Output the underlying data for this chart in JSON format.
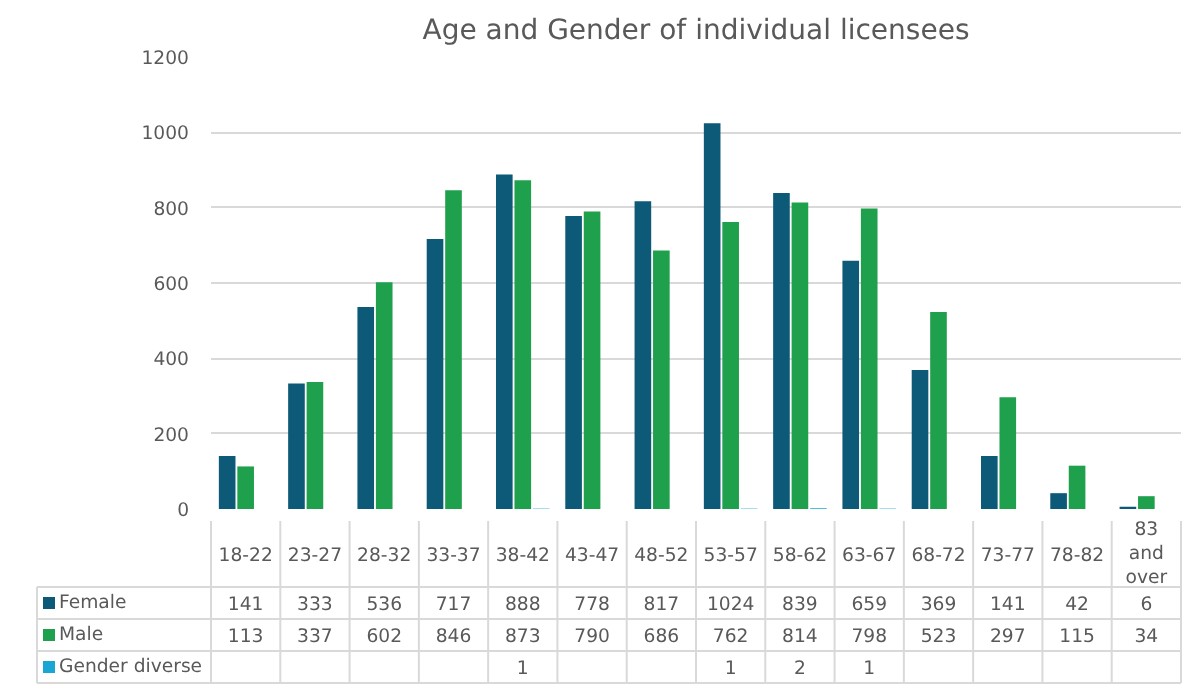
{
  "chart_data": {
    "type": "bar",
    "title": "Age and Gender of individual licensees",
    "categories": [
      "18-22",
      "23-27",
      "28-32",
      "33-37",
      "38-42",
      "43-47",
      "48-52",
      "53-57",
      "58-62",
      "63-67",
      "68-72",
      "73-77",
      "78-82",
      "83 and over"
    ],
    "series": [
      {
        "name": "Female",
        "color": "#0d5a78",
        "values": [
          141,
          333,
          536,
          717,
          888,
          778,
          817,
          1024,
          839,
          659,
          369,
          141,
          42,
          6
        ]
      },
      {
        "name": "Male",
        "color": "#1ea04c",
        "values": [
          113,
          337,
          602,
          846,
          873,
          790,
          686,
          762,
          814,
          798,
          523,
          297,
          115,
          34
        ]
      },
      {
        "name": "Gender diverse",
        "color": "#1aa6d3",
        "values": [
          null,
          null,
          null,
          null,
          1,
          null,
          null,
          1,
          2,
          1,
          null,
          null,
          null,
          null
        ]
      }
    ],
    "ylim": [
      0,
      1200
    ],
    "yticks": [
      0,
      200,
      400,
      600,
      800,
      1000,
      1200
    ],
    "grid": "y",
    "legend": "bottom",
    "data_labels": true,
    "tick_labels": "y"
  }
}
